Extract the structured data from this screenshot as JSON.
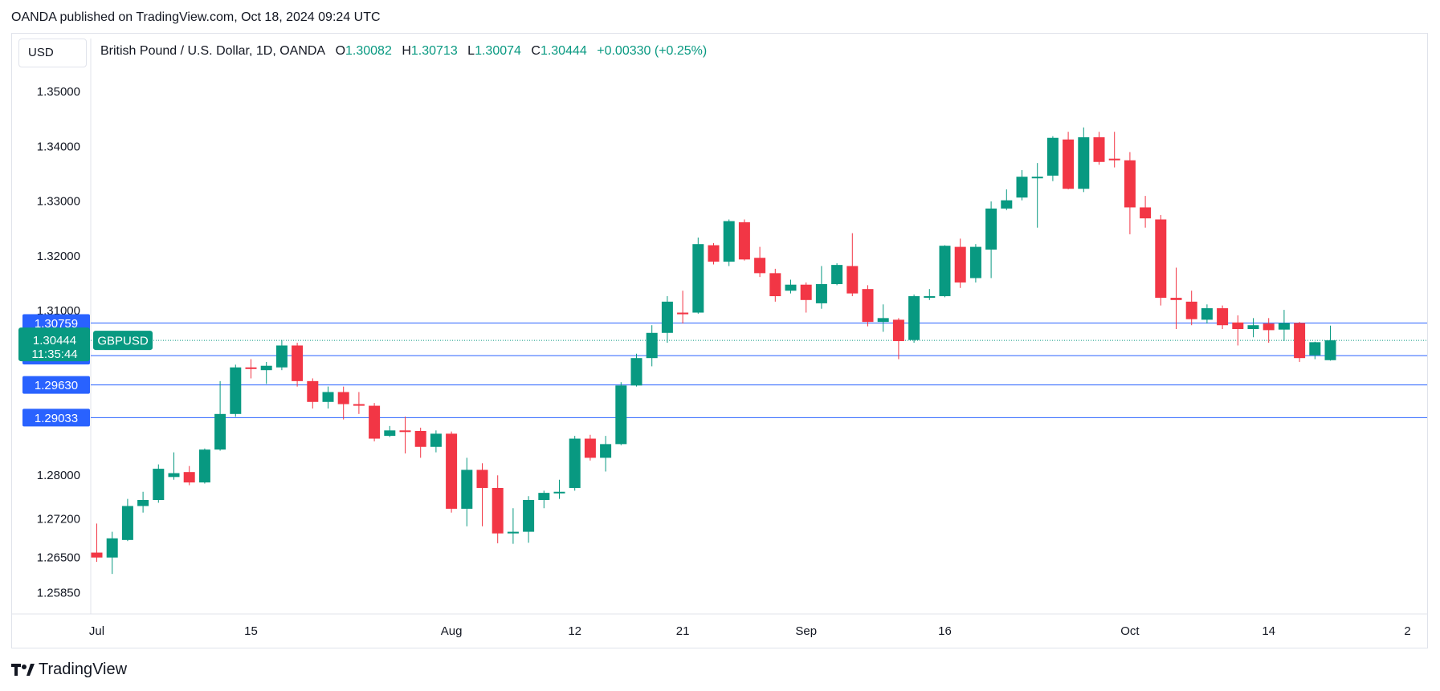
{
  "publisher_line": "OANDA published on TradingView.com, Oct 18, 2024 09:24 UTC",
  "currency_button": "USD",
  "legend": {
    "symbol": "British Pound / U.S. Dollar, 1D, OANDA",
    "o_label": "O",
    "o_value": "1.30082",
    "h_label": "H",
    "h_value": "1.30713",
    "l_label": "L",
    "l_value": "1.30074",
    "c_label": "C",
    "c_value": "1.30444",
    "change": "+0.00330 (+0.25%)"
  },
  "footer_brand": "TradingView",
  "colors": {
    "up": "#089981",
    "down": "#f23645",
    "hline": "#2962ff",
    "grid": "#e0e3eb",
    "axis_text": "#131722",
    "price_tag": "#089981"
  },
  "chart_data": {
    "type": "candlestick",
    "symbol_tag": "GBPUSD",
    "last_price": 1.30444,
    "countdown": "11:35:44",
    "ylim": [
      1.2545,
      1.3585
    ],
    "y_ticks": [
      1.35,
      1.34,
      1.33,
      1.32,
      1.31,
      1.28,
      1.272,
      1.265,
      1.2585
    ],
    "y_tick_labels": [
      "1.35000",
      "1.34000",
      "1.33000",
      "1.32000",
      "1.31000",
      "1.28000",
      "1.27200",
      "1.26500",
      "1.25850"
    ],
    "horizontal_lines": [
      {
        "value": 1.30759,
        "label": "1.30759"
      },
      {
        "value": 1.30165,
        "label": "1.30165"
      },
      {
        "value": 1.2963,
        "label": "1.29630"
      },
      {
        "value": 1.29033,
        "label": "1.29033"
      }
    ],
    "x_ticks": [
      {
        "index": 0,
        "label": "Jul"
      },
      {
        "index": 10,
        "label": "15"
      },
      {
        "index": 23,
        "label": "Aug"
      },
      {
        "index": 31,
        "label": "12"
      },
      {
        "index": 38,
        "label": "21"
      },
      {
        "index": 46,
        "label": "Sep"
      },
      {
        "index": 55,
        "label": "16"
      },
      {
        "index": 67,
        "label": "Oct"
      },
      {
        "index": 76,
        "label": "14"
      },
      {
        "index": 85,
        "label": "2"
      }
    ],
    "candles": [
      {
        "o": 1.2657,
        "h": 1.271,
        "l": 1.264,
        "c": 1.2648
      },
      {
        "o": 1.2648,
        "h": 1.2695,
        "l": 1.2618,
        "c": 1.2683
      },
      {
        "o": 1.268,
        "h": 1.2755,
        "l": 1.2678,
        "c": 1.2742
      },
      {
        "o": 1.2742,
        "h": 1.2768,
        "l": 1.273,
        "c": 1.2753
      },
      {
        "o": 1.2753,
        "h": 1.2818,
        "l": 1.2748,
        "c": 1.281
      },
      {
        "o": 1.2795,
        "h": 1.284,
        "l": 1.279,
        "c": 1.2802
      },
      {
        "o": 1.2804,
        "h": 1.2815,
        "l": 1.278,
        "c": 1.2785
      },
      {
        "o": 1.2785,
        "h": 1.2847,
        "l": 1.2783,
        "c": 1.2845
      },
      {
        "o": 1.2845,
        "h": 1.297,
        "l": 1.2843,
        "c": 1.291
      },
      {
        "o": 1.291,
        "h": 1.3,
        "l": 1.2905,
        "c": 1.2995
      },
      {
        "o": 1.2995,
        "h": 1.301,
        "l": 1.2975,
        "c": 1.2993
      },
      {
        "o": 1.299,
        "h": 1.3005,
        "l": 1.2965,
        "c": 1.2998
      },
      {
        "o": 1.2995,
        "h": 1.3045,
        "l": 1.299,
        "c": 1.3035
      },
      {
        "o": 1.3035,
        "h": 1.304,
        "l": 1.296,
        "c": 1.297
      },
      {
        "o": 1.297,
        "h": 1.2975,
        "l": 1.292,
        "c": 1.2932
      },
      {
        "o": 1.2932,
        "h": 1.296,
        "l": 1.292,
        "c": 1.295
      },
      {
        "o": 1.295,
        "h": 1.296,
        "l": 1.29,
        "c": 1.2928
      },
      {
        "o": 1.2928,
        "h": 1.295,
        "l": 1.291,
        "c": 1.2925
      },
      {
        "o": 1.2925,
        "h": 1.293,
        "l": 1.286,
        "c": 1.2865
      },
      {
        "o": 1.287,
        "h": 1.2888,
        "l": 1.2868,
        "c": 1.288
      },
      {
        "o": 1.288,
        "h": 1.2905,
        "l": 1.2838,
        "c": 1.2879
      },
      {
        "o": 1.2879,
        "h": 1.2885,
        "l": 1.283,
        "c": 1.285
      },
      {
        "o": 1.285,
        "h": 1.288,
        "l": 1.284,
        "c": 1.2874
      },
      {
        "o": 1.2874,
        "h": 1.2878,
        "l": 1.273,
        "c": 1.2737
      },
      {
        "o": 1.2737,
        "h": 1.283,
        "l": 1.2705,
        "c": 1.2808
      },
      {
        "o": 1.2808,
        "h": 1.282,
        "l": 1.2705,
        "c": 1.2775
      },
      {
        "o": 1.2775,
        "h": 1.2798,
        "l": 1.2674,
        "c": 1.2692
      },
      {
        "o": 1.2692,
        "h": 1.2738,
        "l": 1.2673,
        "c": 1.2695
      },
      {
        "o": 1.2695,
        "h": 1.276,
        "l": 1.2675,
        "c": 1.2753
      },
      {
        "o": 1.2753,
        "h": 1.277,
        "l": 1.2738,
        "c": 1.2766
      },
      {
        "o": 1.2766,
        "h": 1.279,
        "l": 1.2755,
        "c": 1.2768
      },
      {
        "o": 1.2775,
        "h": 1.287,
        "l": 1.277,
        "c": 1.2865
      },
      {
        "o": 1.2865,
        "h": 1.2872,
        "l": 1.2825,
        "c": 1.283
      },
      {
        "o": 1.283,
        "h": 1.287,
        "l": 1.2805,
        "c": 1.2855
      },
      {
        "o": 1.2855,
        "h": 1.2968,
        "l": 1.2853,
        "c": 1.2962
      },
      {
        "o": 1.2962,
        "h": 1.302,
        "l": 1.296,
        "c": 1.3012
      },
      {
        "o": 1.3012,
        "h": 1.3072,
        "l": 1.2997,
        "c": 1.3058
      },
      {
        "o": 1.3058,
        "h": 1.3125,
        "l": 1.304,
        "c": 1.3115
      },
      {
        "o": 1.3095,
        "h": 1.3135,
        "l": 1.3075,
        "c": 1.3092
      },
      {
        "o": 1.3095,
        "h": 1.3232,
        "l": 1.3093,
        "c": 1.322
      },
      {
        "o": 1.3218,
        "h": 1.3222,
        "l": 1.3183,
        "c": 1.3188
      },
      {
        "o": 1.3188,
        "h": 1.3265,
        "l": 1.318,
        "c": 1.3262
      },
      {
        "o": 1.326,
        "h": 1.3265,
        "l": 1.319,
        "c": 1.3192
      },
      {
        "o": 1.3195,
        "h": 1.3215,
        "l": 1.316,
        "c": 1.3167
      },
      {
        "o": 1.3167,
        "h": 1.3175,
        "l": 1.3115,
        "c": 1.3125
      },
      {
        "o": 1.3135,
        "h": 1.3155,
        "l": 1.313,
        "c": 1.3146
      },
      {
        "o": 1.3146,
        "h": 1.315,
        "l": 1.3095,
        "c": 1.3118
      },
      {
        "o": 1.3112,
        "h": 1.318,
        "l": 1.3102,
        "c": 1.3147
      },
      {
        "o": 1.3147,
        "h": 1.3185,
        "l": 1.3145,
        "c": 1.3182
      },
      {
        "o": 1.318,
        "h": 1.324,
        "l": 1.3125,
        "c": 1.313
      },
      {
        "o": 1.3138,
        "h": 1.3145,
        "l": 1.307,
        "c": 1.3078
      },
      {
        "o": 1.3078,
        "h": 1.311,
        "l": 1.306,
        "c": 1.3085
      },
      {
        "o": 1.3082,
        "h": 1.3085,
        "l": 1.301,
        "c": 1.3043
      },
      {
        "o": 1.3045,
        "h": 1.3128,
        "l": 1.304,
        "c": 1.3125
      },
      {
        "o": 1.3122,
        "h": 1.3138,
        "l": 1.3118,
        "c": 1.3125
      },
      {
        "o": 1.3125,
        "h": 1.3218,
        "l": 1.3123,
        "c": 1.3217
      },
      {
        "o": 1.3215,
        "h": 1.323,
        "l": 1.314,
        "c": 1.315
      },
      {
        "o": 1.3158,
        "h": 1.322,
        "l": 1.315,
        "c": 1.3215
      },
      {
        "o": 1.321,
        "h": 1.3298,
        "l": 1.3158,
        "c": 1.3285
      },
      {
        "o": 1.3285,
        "h": 1.332,
        "l": 1.3282,
        "c": 1.33
      },
      {
        "o": 1.3305,
        "h": 1.3355,
        "l": 1.33,
        "c": 1.3343
      },
      {
        "o": 1.3343,
        "h": 1.3368,
        "l": 1.325,
        "c": 1.3343
      },
      {
        "o": 1.3345,
        "h": 1.3417,
        "l": 1.3335,
        "c": 1.3414
      },
      {
        "o": 1.3411,
        "h": 1.3425,
        "l": 1.332,
        "c": 1.3321
      },
      {
        "o": 1.3321,
        "h": 1.3433,
        "l": 1.3315,
        "c": 1.3415
      },
      {
        "o": 1.3415,
        "h": 1.3425,
        "l": 1.3365,
        "c": 1.337
      },
      {
        "o": 1.3376,
        "h": 1.3425,
        "l": 1.336,
        "c": 1.3373
      },
      {
        "o": 1.3373,
        "h": 1.3388,
        "l": 1.3238,
        "c": 1.3287
      },
      {
        "o": 1.3287,
        "h": 1.3308,
        "l": 1.325,
        "c": 1.3267
      },
      {
        "o": 1.3265,
        "h": 1.3273,
        "l": 1.3108,
        "c": 1.3122
      },
      {
        "o": 1.3122,
        "h": 1.3177,
        "l": 1.3065,
        "c": 1.3118
      },
      {
        "o": 1.3115,
        "h": 1.3135,
        "l": 1.3072,
        "c": 1.3083
      },
      {
        "o": 1.3082,
        "h": 1.311,
        "l": 1.3075,
        "c": 1.3103
      },
      {
        "o": 1.3103,
        "h": 1.3108,
        "l": 1.3065,
        "c": 1.3072
      },
      {
        "o": 1.3077,
        "h": 1.309,
        "l": 1.3035,
        "c": 1.3065
      },
      {
        "o": 1.3065,
        "h": 1.3085,
        "l": 1.305,
        "c": 1.3072
      },
      {
        "o": 1.3075,
        "h": 1.3085,
        "l": 1.304,
        "c": 1.3063
      },
      {
        "o": 1.3064,
        "h": 1.31,
        "l": 1.3043,
        "c": 1.3076
      },
      {
        "o": 1.3076,
        "h": 1.3078,
        "l": 1.3005,
        "c": 1.3012
      },
      {
        "o": 1.3017,
        "h": 1.3042,
        "l": 1.301,
        "c": 1.3041
      },
      {
        "o": 1.30082,
        "h": 1.30713,
        "l": 1.30074,
        "c": 1.30444
      }
    ]
  }
}
